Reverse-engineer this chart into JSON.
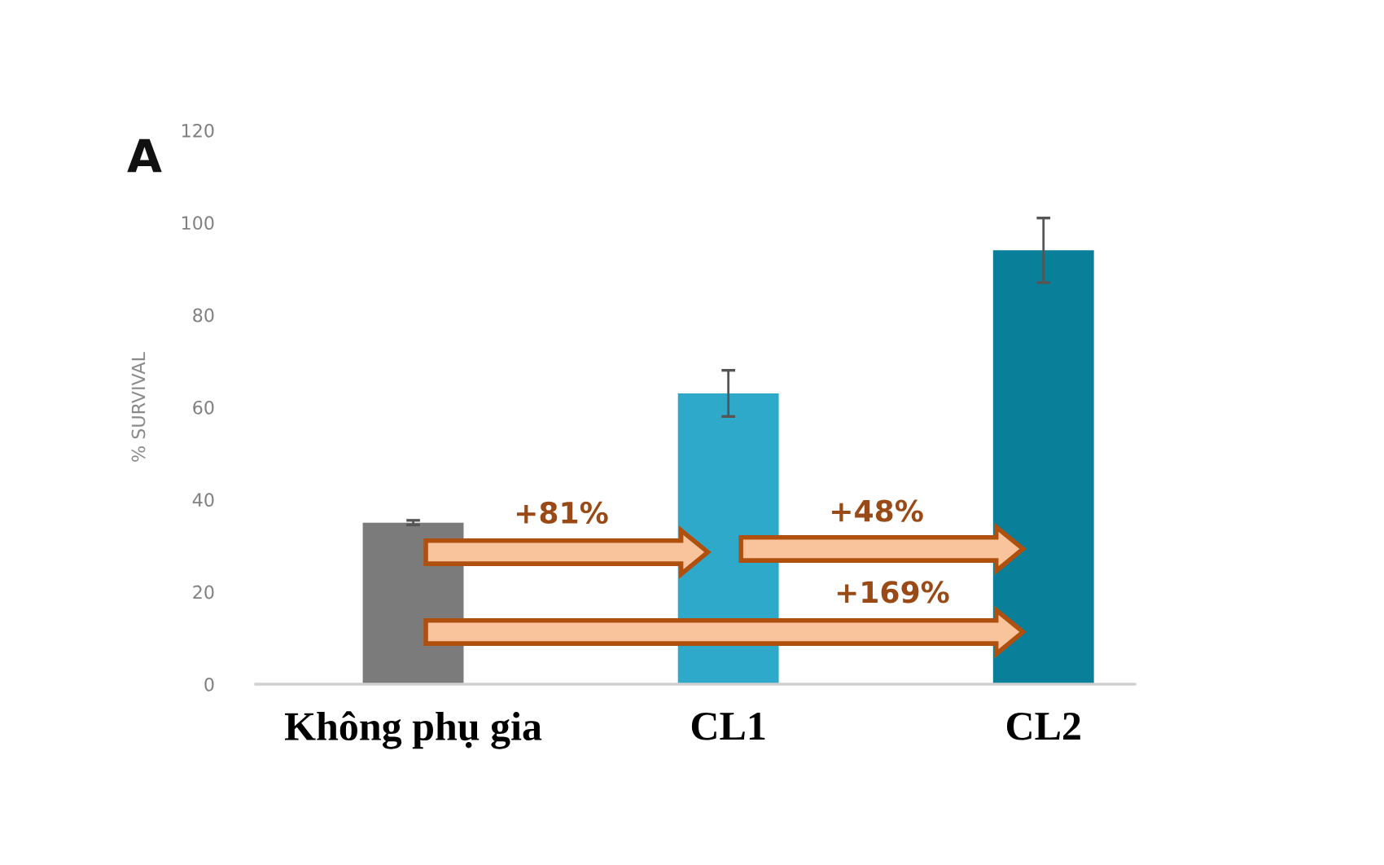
{
  "chart_data": {
    "type": "bar",
    "title": "A",
    "ylabel": "% SURVIVAL",
    "categories": [
      "Không phụ gia",
      "CL1",
      "CL2"
    ],
    "values": [
      35,
      63,
      94
    ],
    "errors": [
      0.5,
      5,
      7
    ],
    "colors": [
      "#7b7b7b",
      "#2fa9c9",
      "#0a7f99"
    ],
    "ylim": [
      0,
      120
    ],
    "yticks": [
      0,
      20,
      40,
      60,
      80,
      100,
      120
    ],
    "annotations": [
      "+81%",
      "+48%",
      "+169%"
    ]
  }
}
